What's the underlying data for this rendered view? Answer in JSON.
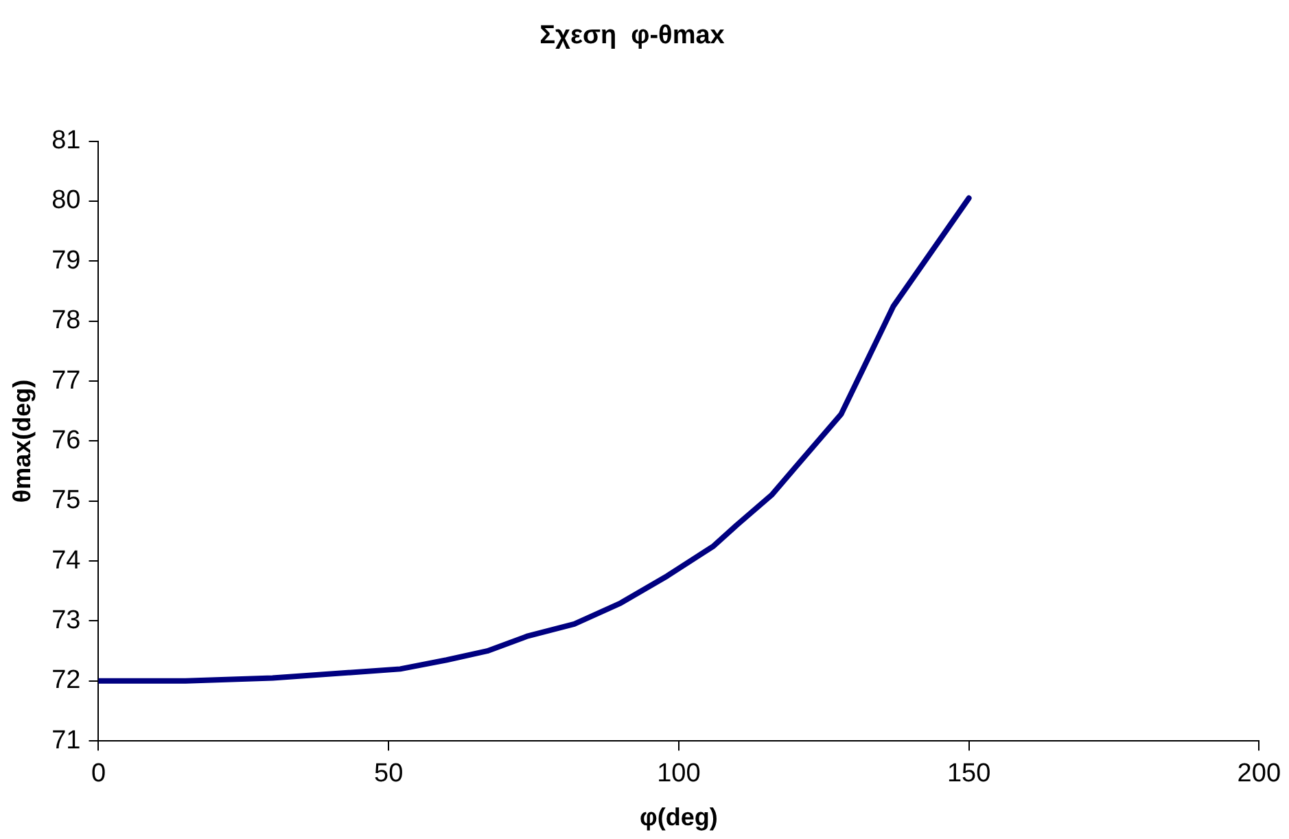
{
  "chart_data": {
    "type": "line",
    "title": "Σχεση  φ-θmax",
    "xlabel": "φ(deg)",
    "ylabel": "θmax(deg)",
    "x": [
      0,
      15,
      30,
      52,
      60,
      67,
      74,
      82,
      90,
      98,
      106,
      110,
      116,
      120,
      128,
      137,
      150
    ],
    "series": [
      {
        "color": "#000080",
        "values": [
          72.0,
          72.0,
          72.05,
          72.2,
          72.35,
          72.5,
          72.75,
          72.95,
          73.3,
          73.75,
          74.25,
          74.6,
          75.1,
          75.55,
          76.45,
          78.25,
          80.05
        ]
      }
    ],
    "xlim": [
      0,
      200
    ],
    "xticks": [
      0,
      50,
      100,
      150,
      200
    ],
    "ylim": [
      71,
      81
    ],
    "yticks": [
      71,
      72,
      73,
      74,
      75,
      76,
      77,
      78,
      79,
      80,
      81
    ],
    "grid": false,
    "legend": false,
    "marker": "none",
    "line_style": "solid"
  }
}
